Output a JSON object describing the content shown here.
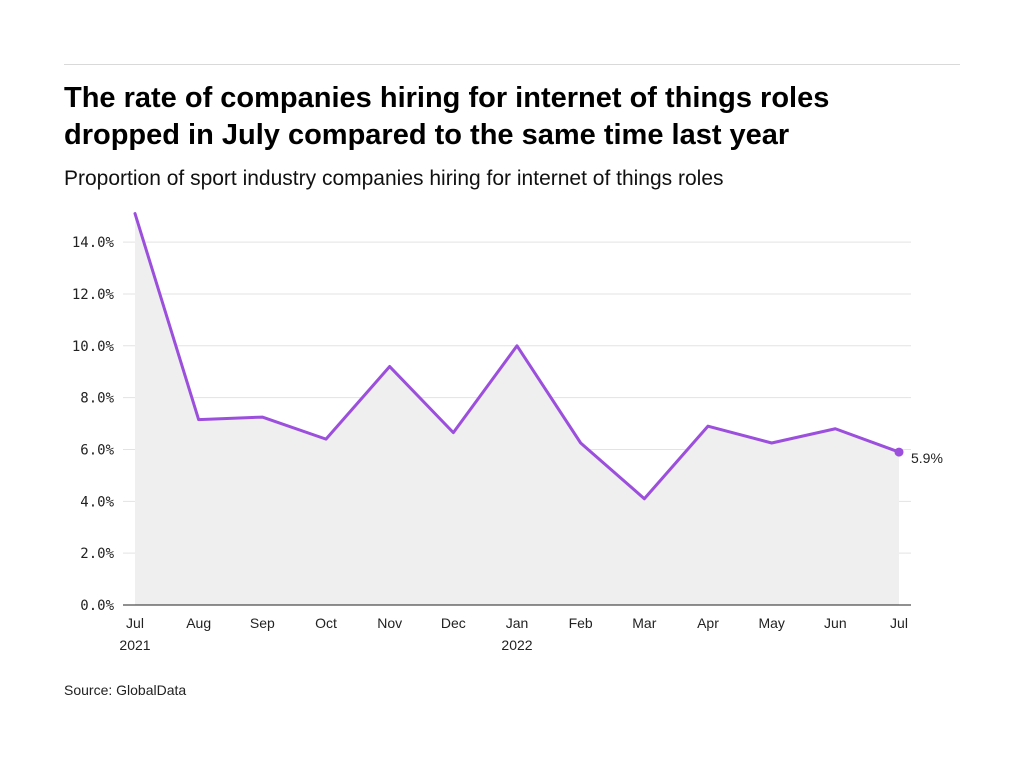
{
  "header": {
    "title_line1": "The rate of companies hiring for internet of things roles",
    "title_line2": "dropped in July compared to the same time last year",
    "subtitle": "Proportion of sport industry companies hiring for internet of things roles"
  },
  "source": "Source: GlobalData",
  "colors": {
    "line": "#9b4fdc",
    "area": "#efefef",
    "grid": "#e3e3e3",
    "axis": "#222222"
  },
  "chart_data": {
    "type": "area",
    "title": "The rate of companies hiring for internet of things roles dropped in July compared to the same time last year",
    "subtitle": "Proportion of sport industry companies hiring for internet of things roles",
    "xlabel": "",
    "ylabel": "",
    "categories": [
      "Jul",
      "Aug",
      "Sep",
      "Oct",
      "Nov",
      "Dec",
      "Jan",
      "Feb",
      "Mar",
      "Apr",
      "May",
      "Jun",
      "Jul"
    ],
    "year_labels": [
      "2021",
      "",
      "",
      "",
      "",
      "",
      "2022",
      "",
      "",
      "",
      "",
      "",
      ""
    ],
    "series": [
      {
        "values": [
          15.1,
          7.15,
          7.25,
          6.4,
          9.2,
          6.65,
          10.0,
          6.25,
          4.1,
          6.9,
          6.25,
          6.8,
          5.9
        ]
      }
    ],
    "y_ticks": [
      "0.0%",
      "2.0%",
      "4.0%",
      "6.0%",
      "8.0%",
      "10.0%",
      "12.0%",
      "14.0%"
    ],
    "ylim": [
      0,
      15.2
    ],
    "grid": true,
    "end_label": "5.9%"
  }
}
